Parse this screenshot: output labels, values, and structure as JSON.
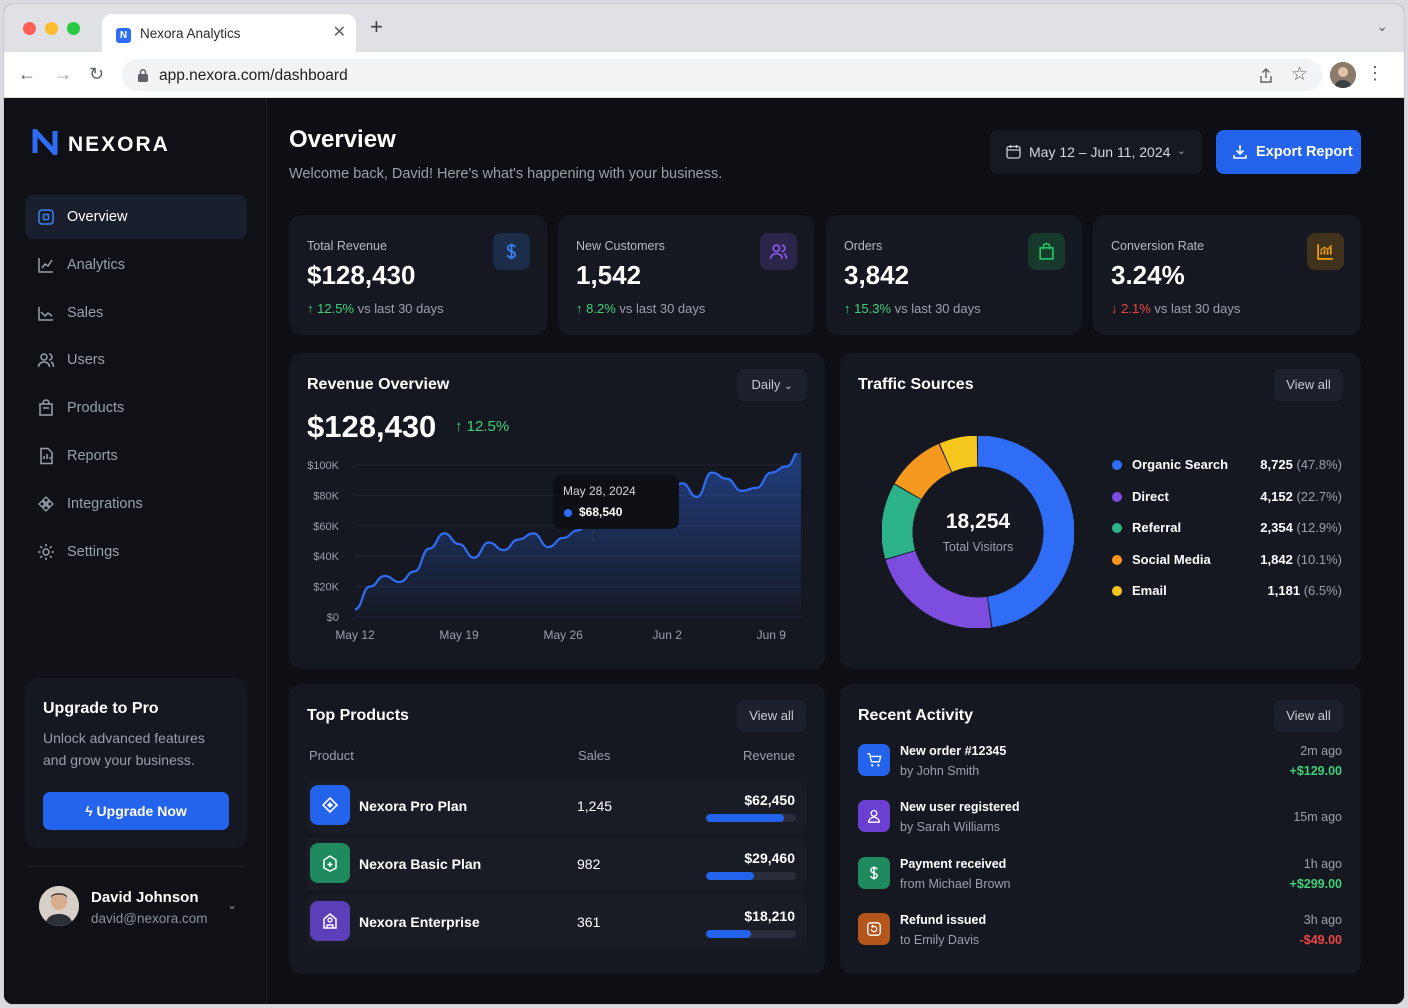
{
  "browser": {
    "tab_title": "Nexora Analytics",
    "favicon_letter": "N",
    "url": "app.nexora.com/dashboard"
  },
  "sidebar": {
    "brand": "NEXORA",
    "items": [
      {
        "label": "Overview",
        "icon": "overview-icon",
        "active": true
      },
      {
        "label": "Analytics",
        "icon": "analytics-icon"
      },
      {
        "label": "Sales",
        "icon": "sales-icon"
      },
      {
        "label": "Users",
        "icon": "users-icon"
      },
      {
        "label": "Products",
        "icon": "products-icon"
      },
      {
        "label": "Reports",
        "icon": "reports-icon"
      },
      {
        "label": "Integrations",
        "icon": "integrations-icon"
      },
      {
        "label": "Settings",
        "icon": "settings-icon"
      }
    ],
    "upgrade": {
      "title": "Upgrade to Pro",
      "text": "Unlock advanced features and grow your business.",
      "button": "Upgrade Now"
    },
    "user": {
      "name": "David Johnson",
      "email": "david@nexora.com"
    }
  },
  "header": {
    "title": "Overview",
    "subtitle": "Welcome back, David! Here's what's happening with your business.",
    "date_range": "May 12 – Jun 11, 2024",
    "export_label": "Export Report"
  },
  "kpis": [
    {
      "label": "Total Revenue",
      "value": "$128,430",
      "delta": "12.5%",
      "direction": "up",
      "period": "vs last 30 days",
      "icon": "dollar-icon",
      "color": "#3b82f6"
    },
    {
      "label": "New Customers",
      "value": "1,542",
      "delta": "8.2%",
      "direction": "up",
      "period": "vs last 30 days",
      "icon": "customers-icon",
      "color": "#8b5cf6"
    },
    {
      "label": "Orders",
      "value": "3,842",
      "delta": "15.3%",
      "direction": "up",
      "period": "vs last 30 days",
      "icon": "bag-icon",
      "color": "#22c55e"
    },
    {
      "label": "Conversion Rate",
      "value": "3.24%",
      "delta": "2.1%",
      "direction": "down",
      "period": "vs last 30 days",
      "icon": "chart-icon",
      "color": "#f59e0b"
    }
  ],
  "revenue": {
    "title": "Revenue Overview",
    "period_select": "Daily",
    "value": "$128,430",
    "delta": "12.5%",
    "tooltip": {
      "date": "May 28, 2024",
      "value": "$68,540"
    }
  },
  "chart_data": {
    "type": "area",
    "x": [
      "May 12",
      "May 13",
      "May 14",
      "May 15",
      "May 16",
      "May 17",
      "May 18",
      "May 19",
      "May 20",
      "May 21",
      "May 22",
      "May 23",
      "May 24",
      "May 25",
      "May 26",
      "May 27",
      "May 28",
      "May 29",
      "May 30",
      "May 31",
      "Jun 1",
      "Jun 2",
      "Jun 3",
      "Jun 4",
      "Jun 5",
      "Jun 6",
      "Jun 7",
      "Jun 8",
      "Jun 9",
      "Jun 10",
      "Jun 11"
    ],
    "values": [
      5000,
      20000,
      27000,
      23000,
      30000,
      45000,
      55000,
      48000,
      39000,
      49000,
      44000,
      51000,
      55000,
      46000,
      52000,
      57000,
      68540,
      64000,
      59000,
      70000,
      73000,
      76000,
      88000,
      79000,
      95000,
      91000,
      83000,
      85000,
      95000,
      99000,
      110000
    ],
    "xticks": [
      "May 12",
      "May 19",
      "May 26",
      "Jun 2",
      "Jun 9"
    ],
    "yticks": [
      "$0",
      "$20K",
      "$40K",
      "$60K",
      "$80K",
      "$100K"
    ],
    "ylim": [
      0,
      100000
    ],
    "series_color": "#2f6df6",
    "highlight": {
      "x": "May 28",
      "value": 68540
    }
  },
  "traffic": {
    "title": "Traffic Sources",
    "view_all": "View all",
    "total": "18,254",
    "total_label": "Total Visitors",
    "sources": [
      {
        "name": "Organic Search",
        "value": "8,725",
        "pct": "(47.8%)",
        "share": 47.8,
        "color": "#2f6df6"
      },
      {
        "name": "Direct",
        "value": "4,152",
        "pct": "(22.7%)",
        "share": 22.7,
        "color": "#7c4ddf"
      },
      {
        "name": "Referral",
        "value": "2,354",
        "pct": "(12.9%)",
        "share": 12.9,
        "color": "#2db38a"
      },
      {
        "name": "Social Media",
        "value": "1,842",
        "pct": "(10.1%)",
        "share": 10.1,
        "color": "#f59a1e"
      },
      {
        "name": "Email",
        "value": "1,181",
        "pct": "(6.5%)",
        "share": 6.5,
        "color": "#f5c61e"
      }
    ]
  },
  "products": {
    "title": "Top Products",
    "view_all": "View all",
    "columns": [
      "Product",
      "Sales",
      "Revenue"
    ],
    "rows": [
      {
        "name": "Nexora Pro Plan",
        "sales": "1,245",
        "revenue": "$62,450",
        "fill": 0.87,
        "icon": "diamond-icon",
        "color": "#2463eb"
      },
      {
        "name": "Nexora Basic Plan",
        "sales": "982",
        "revenue": "$29,460",
        "fill": 0.53,
        "icon": "box-icon",
        "color": "#1f8a5e"
      },
      {
        "name": "Nexora Enterprise",
        "sales": "361",
        "revenue": "$18,210",
        "fill": 0.5,
        "icon": "building-icon",
        "color": "#5b3fb8"
      }
    ]
  },
  "activity": {
    "title": "Recent Activity",
    "view_all": "View all",
    "items": [
      {
        "title": "New order #12345",
        "sub": "by John Smith",
        "time": "2m ago",
        "amount": "+$129.00",
        "icon": "cart-icon",
        "color": "#2463eb"
      },
      {
        "title": "New user registered",
        "sub": "by Sarah Williams",
        "time": "15m ago",
        "amount": "",
        "icon": "user-icon",
        "color": "#6b3fd1"
      },
      {
        "title": "Payment received",
        "sub": "from Michael Brown",
        "time": "1h ago",
        "amount": "+$299.00",
        "icon": "dollar-icon",
        "color": "#1f8a5e"
      },
      {
        "title": "Refund issued",
        "sub": "to Emily Davis",
        "time": "3h ago",
        "amount": "-$49.00",
        "icon": "refund-icon",
        "color": "#b4561c"
      }
    ]
  }
}
